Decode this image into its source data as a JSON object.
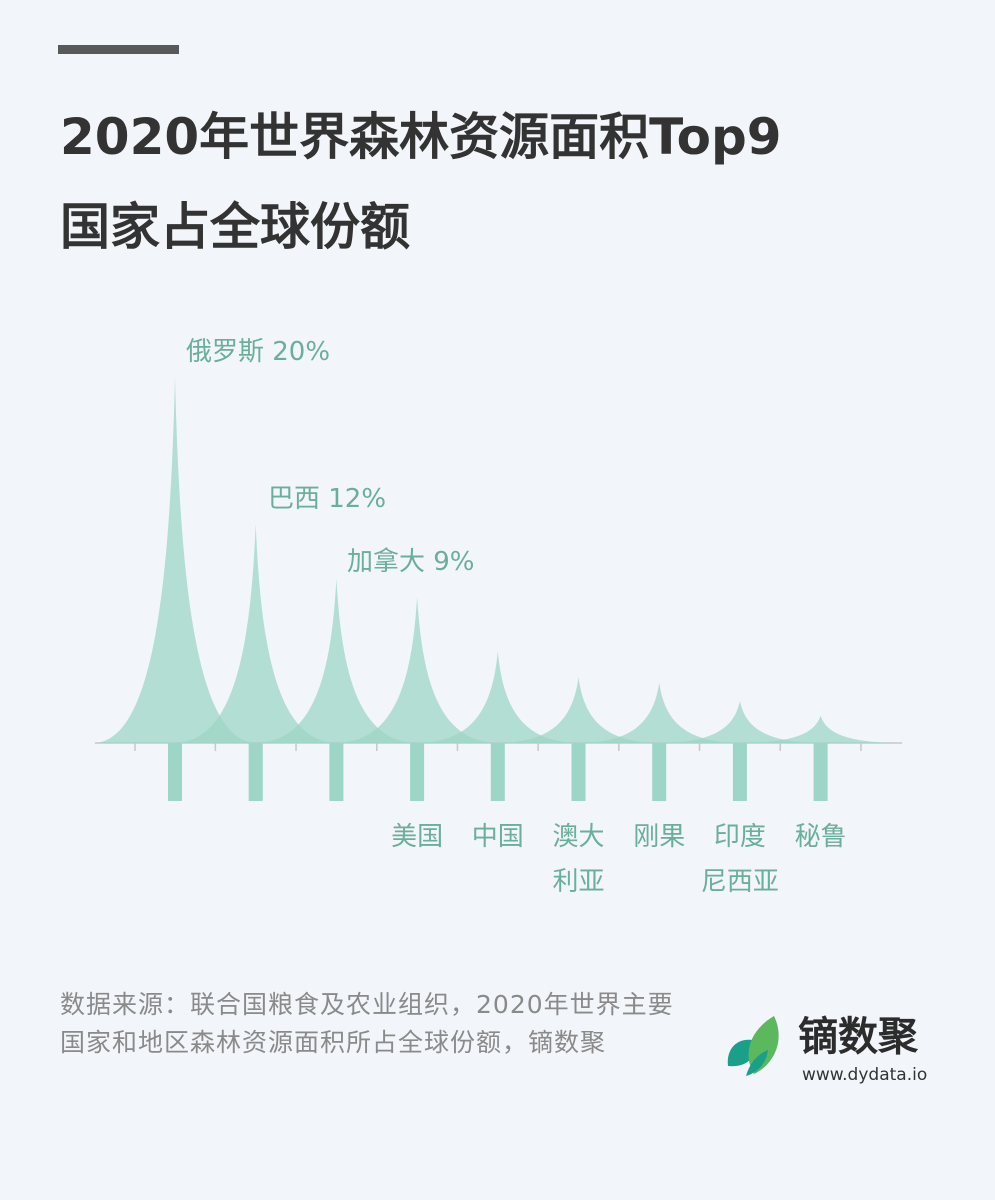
{
  "title": {
    "line1": "2020年世界森林资源面积Top9",
    "line2": "国家占全球份额"
  },
  "chart_data": {
    "type": "area",
    "categories": [
      "俄罗斯",
      "巴西",
      "加拿大",
      "美国",
      "中国",
      "澳大利亚",
      "刚果",
      "印度尼西亚",
      "秘鲁"
    ],
    "category_label_lines": [
      [
        "俄罗斯"
      ],
      [
        "巴西"
      ],
      [
        "加拿大"
      ],
      [
        "美国"
      ],
      [
        "中国"
      ],
      [
        "澳大",
        "利亚"
      ],
      [
        "刚果"
      ],
      [
        "印度",
        "尼西亚"
      ],
      [
        "秘鲁"
      ]
    ],
    "values": [
      20,
      12,
      9,
      8,
      5,
      3.6,
      3.3,
      2.3,
      1.5
    ],
    "annotations": [
      {
        "category": "俄罗斯",
        "label": "俄罗斯 20%"
      },
      {
        "category": "巴西",
        "label": "巴西 12%"
      },
      {
        "category": "加拿大",
        "label": "加拿大 9%"
      }
    ],
    "unit": "%",
    "fill_color": "#9dd5c6",
    "label_color": "#6aaf9a",
    "baseline_color": "#c8c8c8",
    "grid": false,
    "legend": "none"
  },
  "source": {
    "text": "数据来源：联合国粮食及农业组织，2020年世界主要国家和地区森林资源面积所占全球份额，镝数聚"
  },
  "logo": {
    "name": "镝数聚",
    "url": "www.dydata.io",
    "colors": [
      "#1a9f8a",
      "#5bb85d",
      "#8ecb5a"
    ]
  }
}
